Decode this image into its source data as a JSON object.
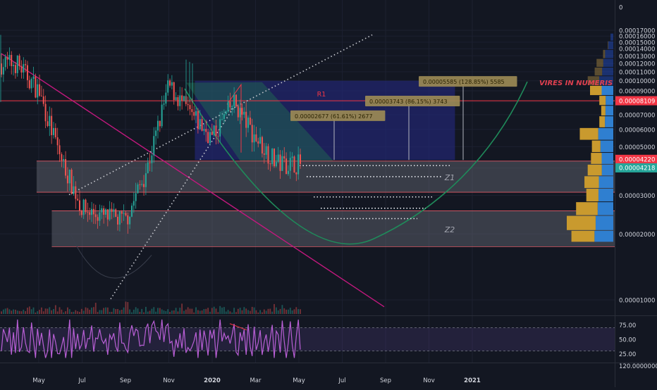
{
  "chart_data": {
    "type": "candlestick",
    "title": "",
    "xlabel": "",
    "ylabel": "",
    "y_scale": "log",
    "ylim": [
      8e-07,
      2.2e-05
    ],
    "grid": true,
    "x_ticks": [
      "May",
      "Jul",
      "Sep",
      "Nov",
      "2020",
      "Mar",
      "May",
      "Jul",
      "Sep",
      "Nov",
      "2021"
    ],
    "y_ticks": [
      "0",
      "0.00017000",
      "0.00016000",
      "0.00015000",
      "0.00014000",
      "0.00013000",
      "0.00012000",
      "0.00011000",
      "0.00010000",
      "0.00009000",
      "0.00008000",
      "0.00007000",
      "0.00006000",
      "0.00005000",
      "0.00004000",
      "0.00003000",
      "0.00002000",
      "0.00001000"
    ],
    "price_series": {
      "dates": [
        "2019-04",
        "2019-05",
        "2019-06",
        "2019-07",
        "2019-08",
        "2019-09",
        "2019-10",
        "2019-11",
        "2019-12",
        "2020-01",
        "2020-02",
        "2020-03",
        "2020-04",
        "2020-05"
      ],
      "close": [
        0.00012,
        9e-05,
        4.5e-05,
        2.6e-05,
        2.4e-05,
        2.3e-05,
        4e-05,
        9.5e-05,
        7e-05,
        5.5e-05,
        8e-05,
        5.5e-05,
        4.2e-05,
        4.2e-05
      ]
    },
    "price_badges": [
      {
        "label": "0.00008109",
        "value": 8.109e-05,
        "color": "#f23645"
      },
      {
        "label": "0.00004220",
        "value": 4.22e-05,
        "color": "#f23645"
      },
      {
        "label": "0.00004218",
        "value": 4.218e-05,
        "color": "#26a69a"
      }
    ],
    "resistance": {
      "label": "R1",
      "value": 8.109e-05
    },
    "zones": [
      {
        "label": "Z1",
        "low": 3.1e-05,
        "high": 4.3e-05
      },
      {
        "label": "Z2",
        "low": 1.75e-05,
        "high": 2.55e-05
      }
    ],
    "targets": [
      {
        "label": "0.00002677 (61.61%) 2677",
        "value": 6.9e-05
      },
      {
        "label": "0.00003743 (86.15%) 3743",
        "value": 8.05e-05
      },
      {
        "label": "0.00005585 (128.85%) 5585",
        "value": 9.9e-05
      }
    ],
    "watermark": "VIRES IN NUMERIS",
    "volume_profile": [
      {
        "price": 1.9e-05,
        "total": 0.9,
        "up_share": 0.45
      },
      {
        "price": 2.25e-05,
        "total": 1.0,
        "up_share": 0.38
      },
      {
        "price": 2.6e-05,
        "total": 0.8,
        "up_share": 0.42
      },
      {
        "price": 3e-05,
        "total": 0.58,
        "up_share": 0.55
      },
      {
        "price": 3.45e-05,
        "total": 0.62,
        "up_share": 0.5
      },
      {
        "price": 3.9e-05,
        "total": 0.55,
        "up_share": 0.45
      },
      {
        "price": 4.4e-05,
        "total": 0.48,
        "up_share": 0.52
      },
      {
        "price": 5e-05,
        "total": 0.46,
        "up_share": 0.6
      },
      {
        "price": 5.7e-05,
        "total": 0.72,
        "up_share": 0.45
      },
      {
        "price": 6.5e-05,
        "total": 0.3,
        "up_share": 0.6
      },
      {
        "price": 7.3e-05,
        "total": 0.26,
        "up_share": 0.65
      },
      {
        "price": 8.1e-05,
        "total": 0.3,
        "up_share": 0.55
      },
      {
        "price": 9e-05,
        "total": 0.5,
        "up_share": 0.5
      },
      {
        "price": 0.0001,
        "total": 0.55,
        "up_share": 0.55
      },
      {
        "price": 0.00011,
        "total": 0.4,
        "up_share": 0.6
      },
      {
        "price": 0.00012,
        "total": 0.36,
        "up_share": 0.6
      },
      {
        "price": 0.000132,
        "total": 0.22,
        "up_share": 0.8
      },
      {
        "price": 0.000145,
        "total": 0.12,
        "up_share": 0.9
      },
      {
        "price": 0.000158,
        "total": 0.06,
        "up_share": 1.0
      }
    ],
    "rsi": {
      "ticks": [
        "75.00",
        "50.00",
        "25.00"
      ],
      "levels": [
        70,
        30
      ],
      "ylim": [
        10,
        90
      ]
    },
    "bottom_right_label": "120.00000000",
    "top_right_label": "0"
  }
}
